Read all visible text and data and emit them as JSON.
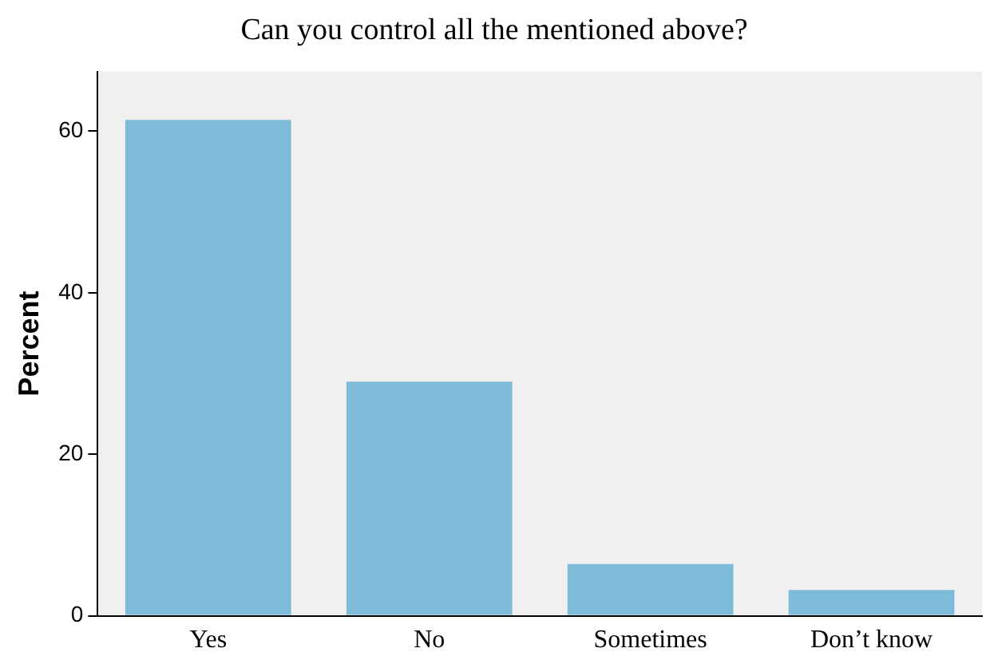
{
  "chart_data": {
    "type": "bar",
    "title": "Can you control all the mentioned above?",
    "ylabel": "Percent",
    "categories": [
      "Yes",
      "No",
      "Sometimes",
      "Don’t know"
    ],
    "values": [
      61.4,
      29.0,
      6.4,
      3.2
    ],
    "color": "#7dbbd9",
    "ylim": [
      0,
      67.4
    ],
    "yticks": [
      0,
      20,
      40,
      60
    ],
    "grid": false,
    "legend": false
  }
}
